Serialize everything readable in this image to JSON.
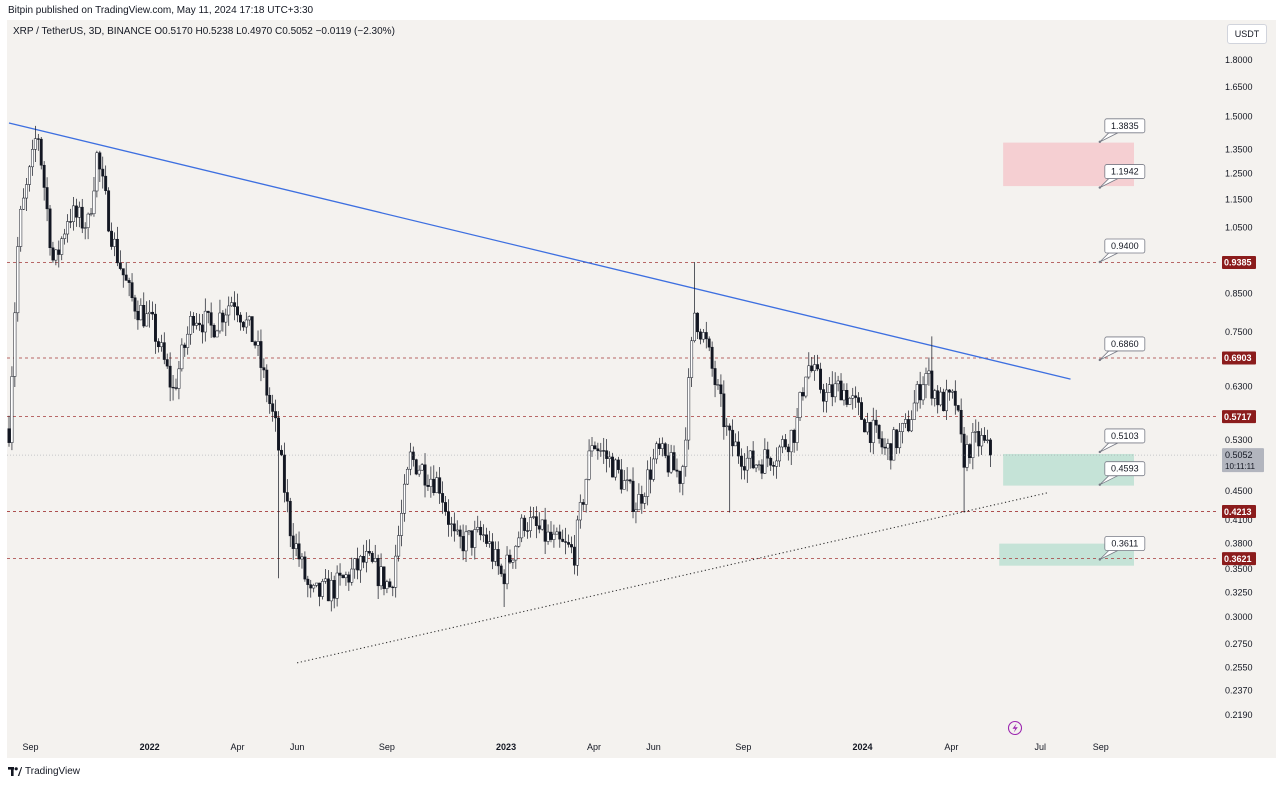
{
  "header": {
    "publisher_line": "Bitpin published on TradingView.com, May 11, 2024 17:18 UTC+3:30"
  },
  "legend": {
    "symbol_line": "XRP / TetherUS, 3D, BINANCE  O0.5170  H0.5238  L0.4970  C0.5052  −0.0119 (−2.30%)"
  },
  "toolbar": {
    "currency": "USDT"
  },
  "footer": {
    "brand": "TradingView"
  },
  "colors": {
    "background": "#f4f2ef",
    "candle": "#131722",
    "trendline": "#3d6fe0",
    "level_line": "#a33a3a",
    "level_badge": "#8b1c1c",
    "current_price_badge": "#b2b5be",
    "red_zone": "#f5c6cb",
    "green_zone": "#b9ded1",
    "axis_text": "#131722",
    "replay_icon": "#9c27b0"
  },
  "chart_data": {
    "type": "candlestick",
    "scale": "log",
    "x_axis": {
      "range": [
        "2021-08-10",
        "2024-10-05"
      ],
      "tick_labels": [
        {
          "label": "Sep",
          "date": "2021-09-01"
        },
        {
          "label": "2022",
          "date": "2022-01-01"
        },
        {
          "label": "Apr",
          "date": "2022-04-01"
        },
        {
          "label": "Jun",
          "date": "2022-06-01"
        },
        {
          "label": "Sep",
          "date": "2022-09-01"
        },
        {
          "label": "2023",
          "date": "2023-01-01"
        },
        {
          "label": "Apr",
          "date": "2023-04-01"
        },
        {
          "label": "Jun",
          "date": "2023-06-01"
        },
        {
          "label": "Sep",
          "date": "2023-09-01"
        },
        {
          "label": "2024",
          "date": "2024-01-01"
        },
        {
          "label": "Apr",
          "date": "2024-04-01"
        },
        {
          "label": "Jul",
          "date": "2024-07-01"
        },
        {
          "label": "Sep",
          "date": "2024-09-01"
        }
      ]
    },
    "y_axis": {
      "range": [
        0.2,
        2.0
      ],
      "tick_labels": [
        "1.8000",
        "1.6500",
        "1.5000",
        "1.3500",
        "1.2500",
        "1.1500",
        "1.0500",
        "0.8500",
        "0.7500",
        "0.6300",
        "0.5300",
        "0.4500",
        "0.4100",
        "0.3800",
        "0.3500",
        "0.3250",
        "0.3000",
        "0.2750",
        "0.2550",
        "0.2370",
        "0.2190"
      ]
    },
    "price_path": [
      {
        "date": "2021-08-10",
        "price": 0.55
      },
      {
        "date": "2021-08-20",
        "price": 1.05
      },
      {
        "date": "2021-09-03",
        "price": 1.3
      },
      {
        "date": "2021-09-08",
        "price": 1.45
      },
      {
        "date": "2021-09-25",
        "price": 0.92
      },
      {
        "date": "2021-10-10",
        "price": 1.1
      },
      {
        "date": "2021-10-30",
        "price": 1.06
      },
      {
        "date": "2021-11-08",
        "price": 1.32
      },
      {
        "date": "2021-11-25",
        "price": 1.0
      },
      {
        "date": "2021-12-12",
        "price": 0.84
      },
      {
        "date": "2022-01-05",
        "price": 0.76
      },
      {
        "date": "2022-01-25",
        "price": 0.62
      },
      {
        "date": "2022-02-15",
        "price": 0.8
      },
      {
        "date": "2022-03-05",
        "price": 0.76
      },
      {
        "date": "2022-03-28",
        "price": 0.84
      },
      {
        "date": "2022-04-20",
        "price": 0.72
      },
      {
        "date": "2022-05-10",
        "price": 0.55
      },
      {
        "date": "2022-05-25",
        "price": 0.4
      },
      {
        "date": "2022-06-15",
        "price": 0.32
      },
      {
        "date": "2022-07-10",
        "price": 0.33
      },
      {
        "date": "2022-08-10",
        "price": 0.36
      },
      {
        "date": "2022-09-05",
        "price": 0.33
      },
      {
        "date": "2022-09-25",
        "price": 0.5
      },
      {
        "date": "2022-10-25",
        "price": 0.46
      },
      {
        "date": "2022-11-10",
        "price": 0.38
      },
      {
        "date": "2022-12-10",
        "price": 0.39
      },
      {
        "date": "2022-12-28",
        "price": 0.34
      },
      {
        "date": "2023-01-20",
        "price": 0.41
      },
      {
        "date": "2023-02-20",
        "price": 0.38
      },
      {
        "date": "2023-03-12",
        "price": 0.37
      },
      {
        "date": "2023-03-30",
        "price": 0.53
      },
      {
        "date": "2023-04-20",
        "price": 0.49
      },
      {
        "date": "2023-05-15",
        "price": 0.43
      },
      {
        "date": "2023-06-05",
        "price": 0.51
      },
      {
        "date": "2023-06-30",
        "price": 0.47
      },
      {
        "date": "2023-07-13",
        "price": 0.8
      },
      {
        "date": "2023-07-25",
        "price": 0.72
      },
      {
        "date": "2023-08-17",
        "price": 0.53
      },
      {
        "date": "2023-09-10",
        "price": 0.49
      },
      {
        "date": "2023-10-05",
        "price": 0.51
      },
      {
        "date": "2023-10-25",
        "price": 0.55
      },
      {
        "date": "2023-11-05",
        "price": 0.68
      },
      {
        "date": "2023-11-25",
        "price": 0.61
      },
      {
        "date": "2023-12-10",
        "price": 0.63
      },
      {
        "date": "2024-01-05",
        "price": 0.56
      },
      {
        "date": "2024-01-25",
        "price": 0.51
      },
      {
        "date": "2024-02-15",
        "price": 0.55
      },
      {
        "date": "2024-03-05",
        "price": 0.66
      },
      {
        "date": "2024-03-20",
        "price": 0.6
      },
      {
        "date": "2024-04-05",
        "price": 0.6
      },
      {
        "date": "2024-04-13",
        "price": 0.5
      },
      {
        "date": "2024-04-20",
        "price": 0.52
      },
      {
        "date": "2024-05-01",
        "price": 0.53
      },
      {
        "date": "2024-05-11",
        "price": 0.5052
      }
    ],
    "spikes": [
      {
        "date": "2023-07-13",
        "high": 0.94
      },
      {
        "date": "2024-04-13",
        "low": 0.42
      },
      {
        "date": "2022-01-22",
        "low": 0.62
      },
      {
        "date": "2022-05-12",
        "low": 0.34
      },
      {
        "date": "2023-08-17",
        "low": 0.42
      },
      {
        "date": "2022-12-30",
        "low": 0.31
      },
      {
        "date": "2024-03-11",
        "high": 0.74
      }
    ],
    "trendlines": [
      {
        "name": "resistance",
        "style": "solid",
        "points": [
          {
            "date": "2021-08-10",
            "price": 1.47
          },
          {
            "date": "2024-08-01",
            "price": 0.645
          }
        ]
      },
      {
        "name": "support",
        "style": "dotted",
        "points": [
          {
            "date": "2022-06-01",
            "price": 0.259
          },
          {
            "date": "2024-07-10",
            "price": 0.448
          }
        ]
      }
    ],
    "horizontal_levels": [
      {
        "label": "0.9385",
        "price": 0.9385
      },
      {
        "label": "0.6903",
        "price": 0.6903
      },
      {
        "label": "0.5717",
        "price": 0.5717
      },
      {
        "label": "0.4213",
        "price": 0.4213
      },
      {
        "label": "0.3621",
        "price": 0.3621
      }
    ],
    "zones": [
      {
        "color": "red",
        "from_date": "2024-05-24",
        "to_date": "2024-10-05",
        "low": 1.2,
        "high": 1.38
      },
      {
        "color": "green",
        "from_date": "2024-05-24",
        "to_date": "2024-10-05",
        "low": 0.458,
        "high": 0.507
      },
      {
        "color": "green",
        "from_date": "2024-05-20",
        "to_date": "2024-10-05",
        "low": 0.354,
        "high": 0.38
      }
    ],
    "callouts": [
      {
        "label": "1.3835",
        "price": 1.3835,
        "date": "2024-08-31"
      },
      {
        "label": "1.1942",
        "price": 1.1942,
        "date": "2024-08-31"
      },
      {
        "label": "0.9400",
        "price": 0.94,
        "date": "2024-08-31"
      },
      {
        "label": "0.6860",
        "price": 0.686,
        "date": "2024-08-31"
      },
      {
        "label": "0.5103",
        "price": 0.5103,
        "date": "2024-08-31"
      },
      {
        "label": "0.4593",
        "price": 0.4593,
        "date": "2024-08-31"
      },
      {
        "label": "0.3611",
        "price": 0.3611,
        "date": "2024-08-31"
      }
    ],
    "current_price": {
      "label": "0.5052",
      "price": 0.5052,
      "countdown": "10:11:11"
    }
  }
}
